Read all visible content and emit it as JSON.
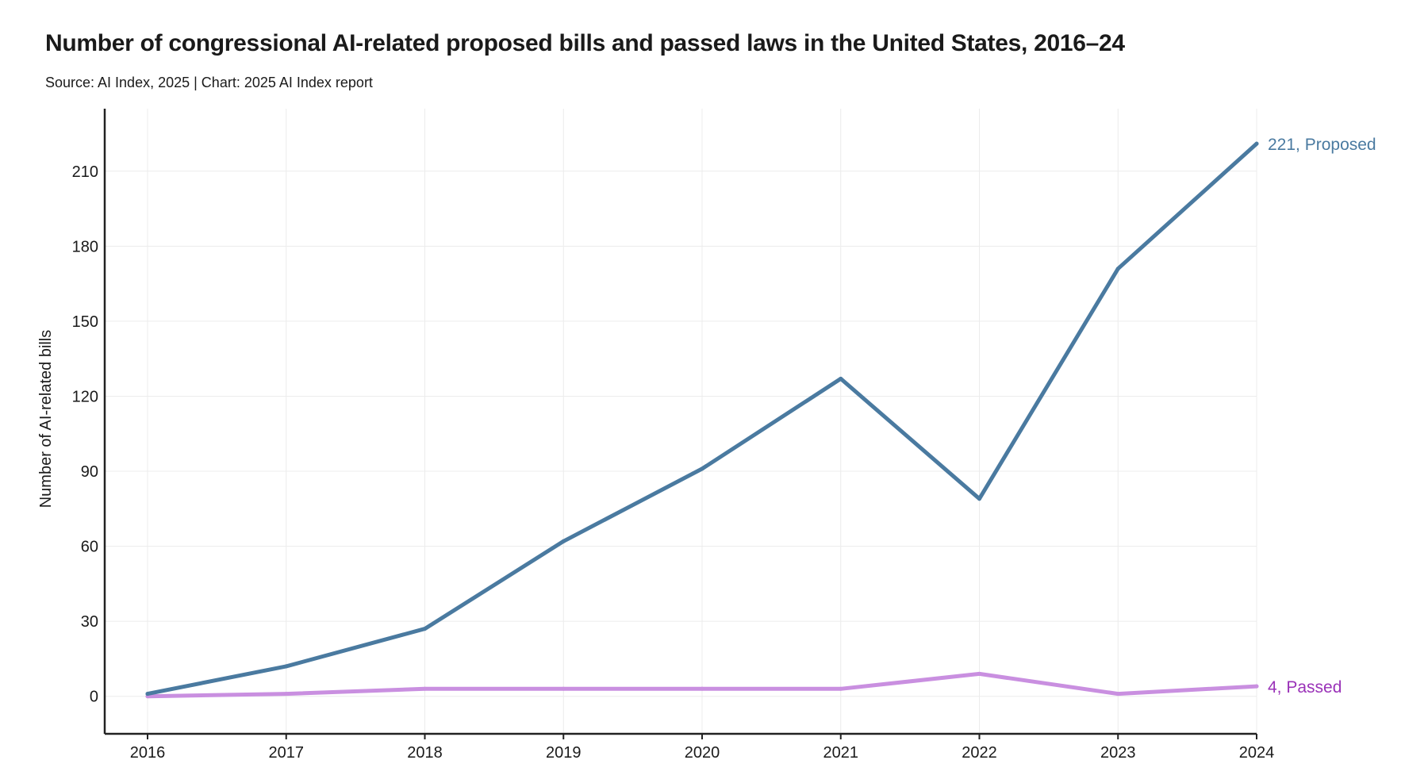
{
  "chart_data": {
    "type": "line",
    "title": "Number of congressional AI-related proposed bills and passed laws in the United States, 2016–24",
    "subtitle": "Source: AI Index, 2025 | Chart: 2025 AI Index report",
    "xlabel": "",
    "ylabel": "Number of AI-related bills",
    "x": [
      "2016",
      "2017",
      "2018",
      "2019",
      "2020",
      "2021",
      "2022",
      "2023",
      "2024"
    ],
    "ylim": [
      -15,
      235
    ],
    "yticks": [
      0,
      30,
      60,
      90,
      120,
      150,
      180,
      210
    ],
    "grid": true,
    "series": [
      {
        "name": "Proposed",
        "color": "#4a7aa0",
        "values": [
          1,
          12,
          27,
          62,
          91,
          127,
          79,
          171,
          221
        ],
        "end_label": "221, Proposed"
      },
      {
        "name": "Passed",
        "color": "#c98fe0",
        "label_color": "#9a32b8",
        "values": [
          0,
          1,
          3,
          3,
          3,
          3,
          9,
          1,
          4
        ],
        "end_label": "4, Passed"
      }
    ]
  }
}
